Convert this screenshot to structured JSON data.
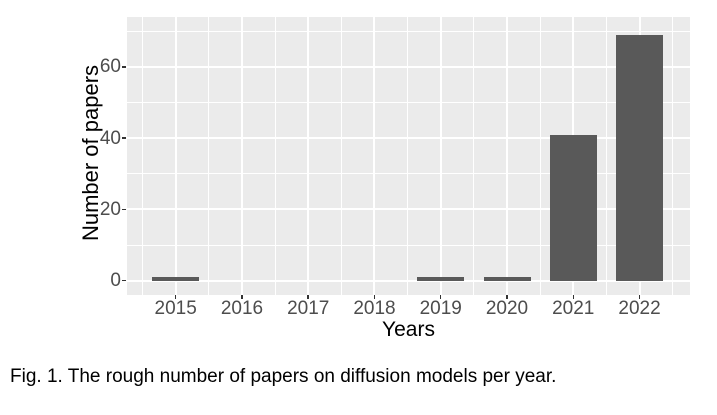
{
  "figure": {
    "caption": "Fig. 1. The rough number of papers on diffusion models per year."
  },
  "chart_data": {
    "type": "bar",
    "title": "",
    "xlabel": "Years",
    "ylabel": "Number of papers",
    "categories": [
      "2015",
      "2016",
      "2017",
      "2018",
      "2019",
      "2020",
      "2021",
      "2022"
    ],
    "values": [
      1,
      0,
      0,
      0,
      1,
      1,
      41,
      69
    ],
    "y_ticks": [
      0,
      20,
      40,
      60
    ],
    "y_minor_gridlines": [
      10,
      30,
      50,
      70
    ],
    "ylim": [
      -4,
      74
    ],
    "grid": "white major and minor gridlines on gray panel",
    "legend": "none",
    "colors": {
      "bar": "#595959",
      "panel_bg": "#EBEBEB",
      "gridline": "#FFFFFF",
      "tick_label": "#4D4D4D",
      "axis_title": "#000000",
      "tick_mark": "#333333",
      "background": "#FFFFFF"
    }
  }
}
